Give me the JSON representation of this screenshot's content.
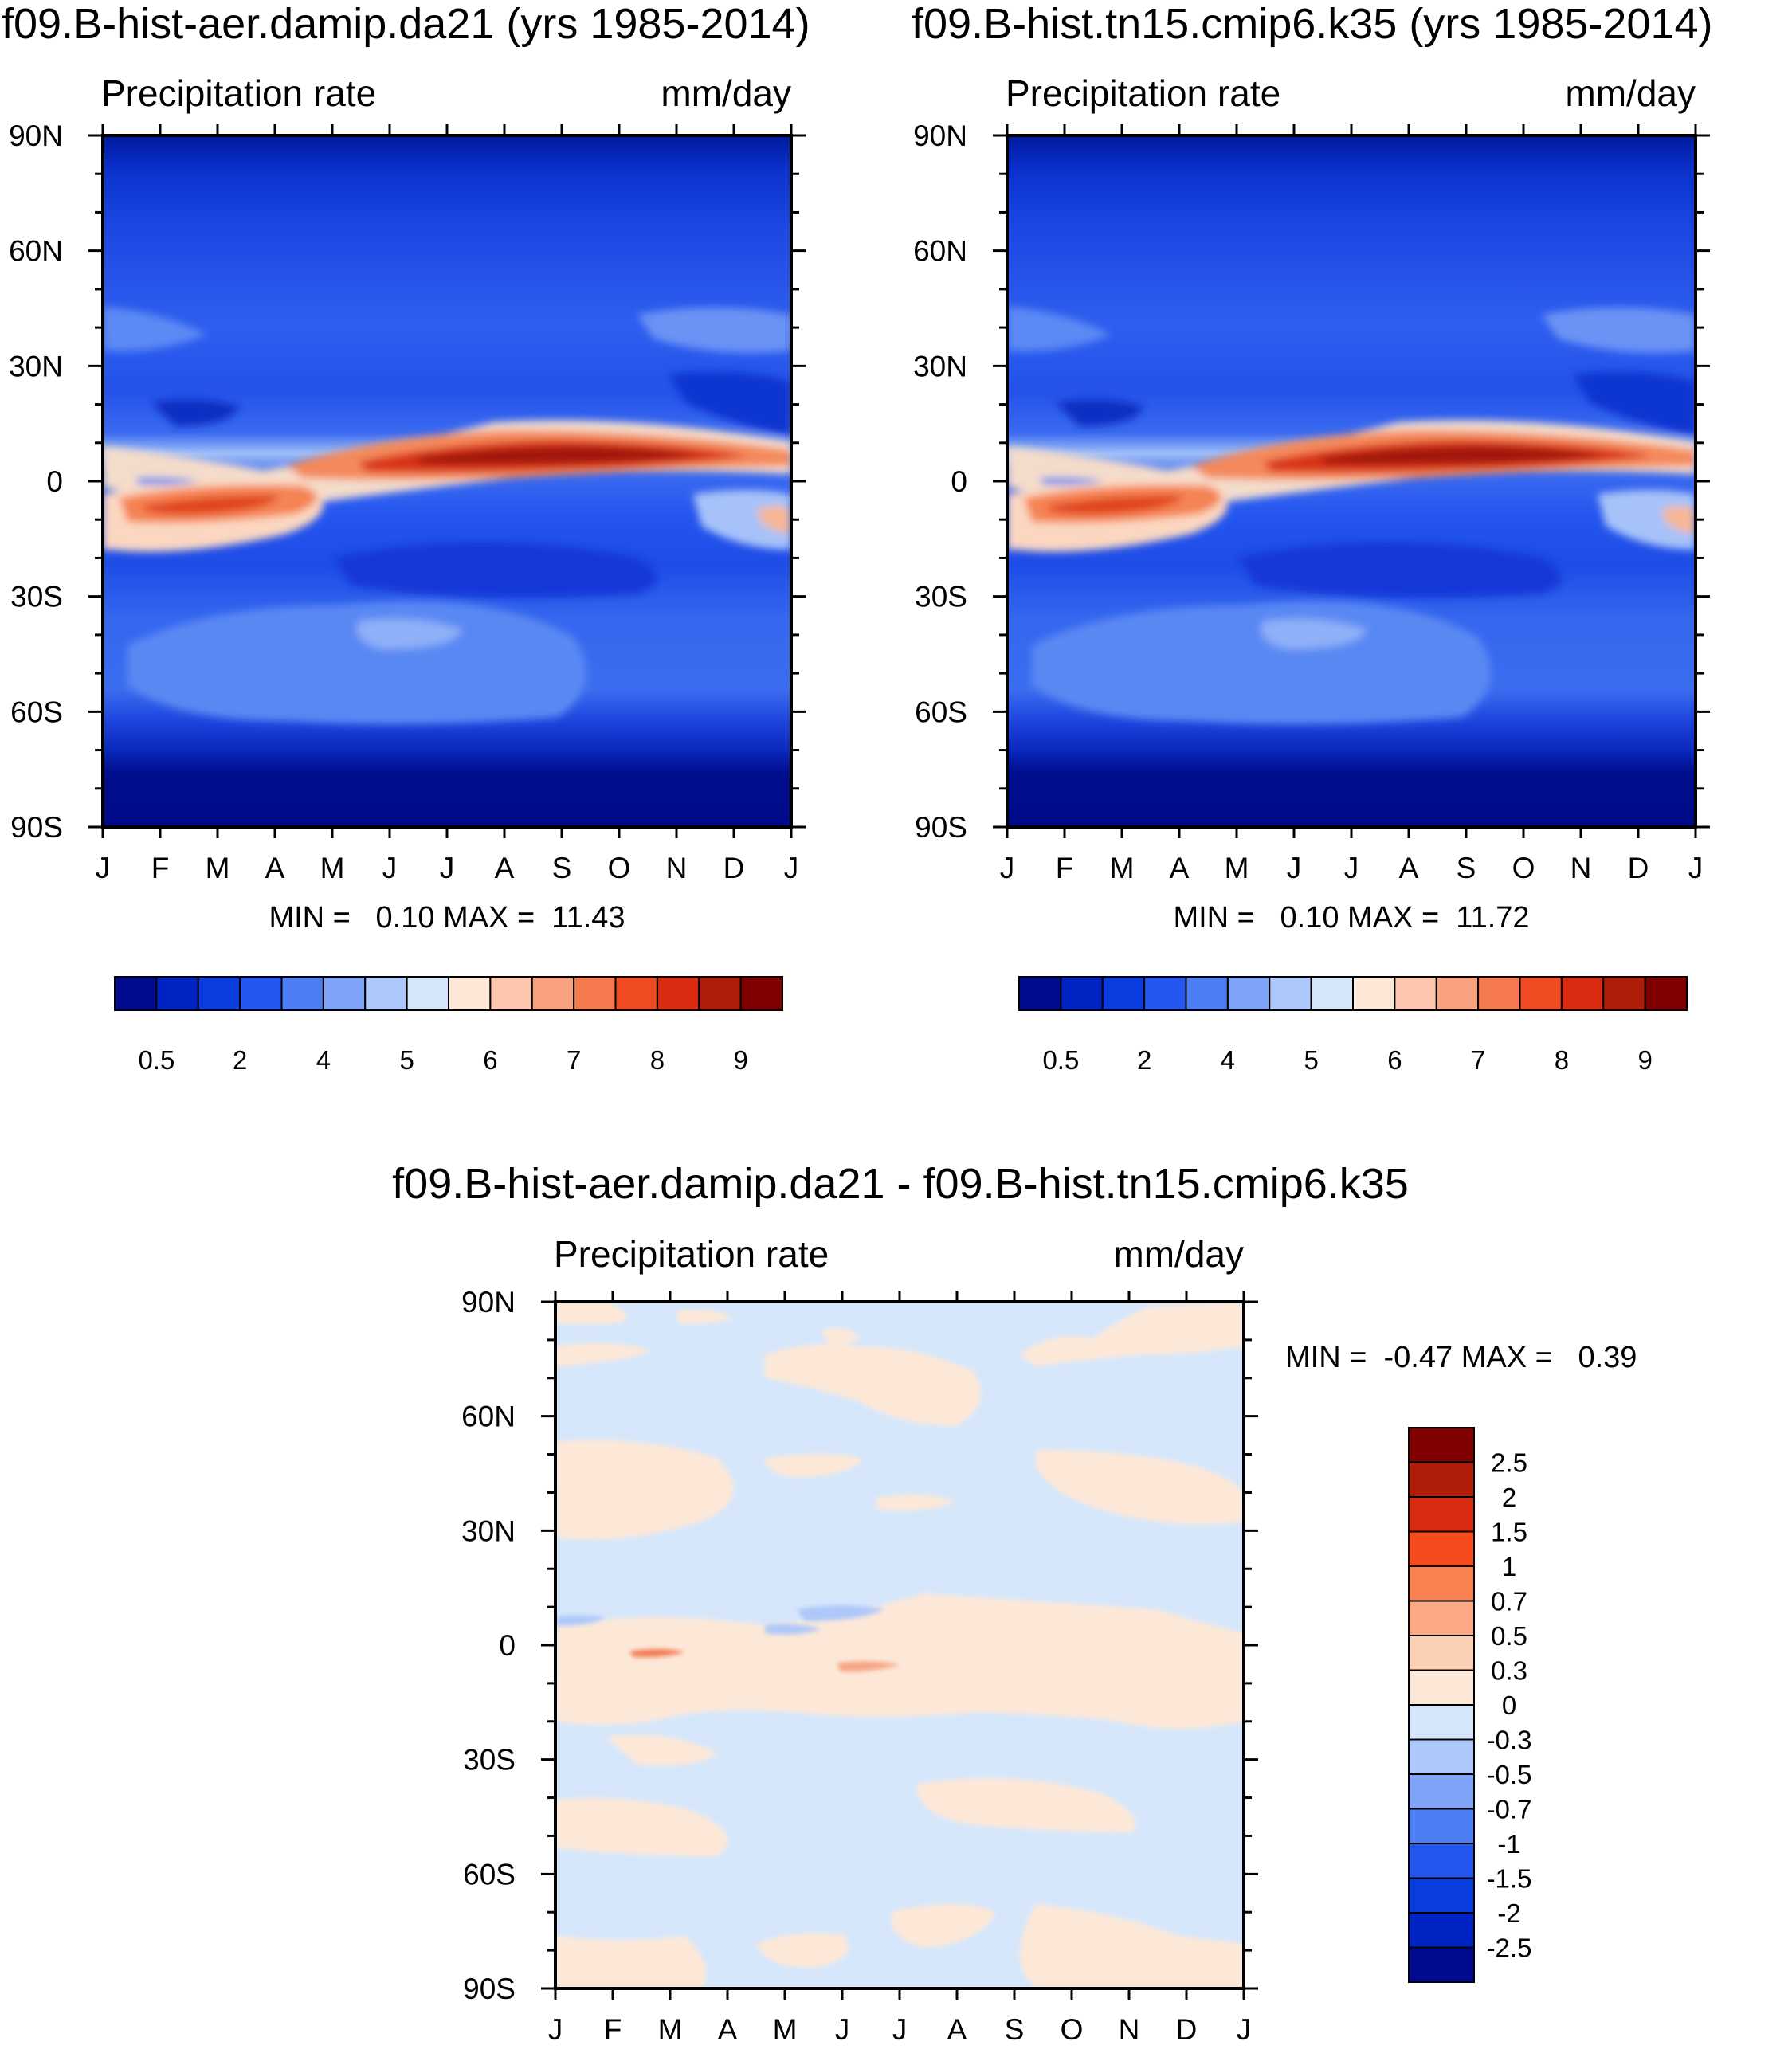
{
  "figure": {
    "variable": "Precipitation rate",
    "units": "mm/day"
  },
  "chart_data": [
    {
      "type": "heatmap",
      "title": "f09.B-hist-aer.damip.da21 (yrs 1985-2014)",
      "subtitle_left": "Precipitation rate",
      "subtitle_right": "mm/day",
      "x_tick_labels": [
        "J",
        "F",
        "M",
        "A",
        "M",
        "J",
        "J",
        "A",
        "S",
        "O",
        "N",
        "D",
        "J"
      ],
      "y_tick_labels": [
        "90N",
        "60N",
        "30N",
        "0",
        "30S",
        "60S",
        "90S"
      ],
      "ylim": [
        -90,
        90
      ],
      "stats_label": "MIN =   0.10 MAX =  11.43",
      "min": 0.1,
      "max": 11.43,
      "colorbar_labels": [
        "0.5",
        "2",
        "4",
        "5",
        "6",
        "7",
        "8",
        "9"
      ],
      "colorbar_colors": [
        "#000a8c",
        "#0024c4",
        "#0a3ddd",
        "#2457f0",
        "#4e7ef3",
        "#7ea3f7",
        "#adc8fa",
        "#d5e6fb",
        "#fde7d7",
        "#fcc7ac",
        "#f9a27f",
        "#f57b4e",
        "#ef4c23",
        "#d92b10",
        "#b01e0a",
        "#800000"
      ]
    },
    {
      "type": "heatmap",
      "title": "f09.B-hist.tn15.cmip6.k35 (yrs 1985-2014)",
      "subtitle_left": "Precipitation rate",
      "subtitle_right": "mm/day",
      "x_tick_labels": [
        "J",
        "F",
        "M",
        "A",
        "M",
        "J",
        "J",
        "A",
        "S",
        "O",
        "N",
        "D",
        "J"
      ],
      "y_tick_labels": [
        "90N",
        "60N",
        "30N",
        "0",
        "30S",
        "60S",
        "90S"
      ],
      "ylim": [
        -90,
        90
      ],
      "stats_label": "MIN =   0.10 MAX =  11.72",
      "min": 0.1,
      "max": 11.72,
      "colorbar_labels": [
        "0.5",
        "2",
        "4",
        "5",
        "6",
        "7",
        "8",
        "9"
      ],
      "colorbar_colors": [
        "#000a8c",
        "#0024c4",
        "#0a3ddd",
        "#2457f0",
        "#4e7ef3",
        "#7ea3f7",
        "#adc8fa",
        "#d5e6fb",
        "#fde7d7",
        "#fcc7ac",
        "#f9a27f",
        "#f57b4e",
        "#ef4c23",
        "#d92b10",
        "#b01e0a",
        "#800000"
      ]
    },
    {
      "type": "heatmap",
      "title": "f09.B-hist-aer.damip.da21 - f09.B-hist.tn15.cmip6.k35",
      "subtitle_left": "Precipitation rate",
      "subtitle_right": "mm/day",
      "x_tick_labels": [
        "J",
        "F",
        "M",
        "A",
        "M",
        "J",
        "J",
        "A",
        "S",
        "O",
        "N",
        "D",
        "J"
      ],
      "y_tick_labels": [
        "90N",
        "60N",
        "30N",
        "0",
        "30S",
        "60S",
        "90S"
      ],
      "ylim": [
        -90,
        90
      ],
      "stats_label": "MIN =  -0.47 MAX =   0.39",
      "min": -0.47,
      "max": 0.39,
      "colorbar_labels": [
        "2.5",
        "2",
        "1.5",
        "1",
        "0.7",
        "0.5",
        "0.3",
        "0",
        "-0.3",
        "-0.5",
        "-0.7",
        "-1",
        "-1.5",
        "-2",
        "-2.5"
      ],
      "colorbar_colors": [
        "#800000",
        "#b01e0a",
        "#d92b10",
        "#f74a1f",
        "#f98050",
        "#fba985",
        "#fcd0b5",
        "#fde7d7",
        "#d5e6fb",
        "#adc8fa",
        "#7ea3f7",
        "#4e7ef3",
        "#2457f0",
        "#0a3ddd",
        "#0024c4",
        "#000a8c"
      ]
    }
  ]
}
